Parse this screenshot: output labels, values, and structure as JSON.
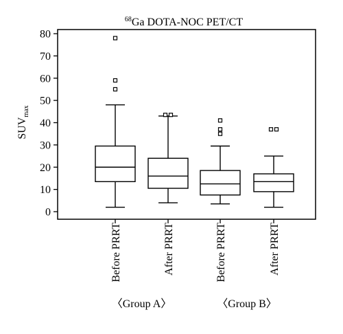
{
  "chart_data": {
    "type": "box",
    "title": {
      "superscript": "68",
      "text": "Ga DOTA-NOC PET/CT"
    },
    "ylabel": {
      "text": "SUV",
      "subscript": "max"
    },
    "ylim": [
      0,
      80
    ],
    "yticks": [
      0,
      10,
      20,
      30,
      40,
      50,
      60,
      70,
      80
    ],
    "grid": false,
    "categories": [
      "Before PRRT",
      "After PRRT",
      "Before PRRT",
      "After PRRT"
    ],
    "groups": [
      {
        "label": "〈Group A〉",
        "categories": [
          0,
          1
        ]
      },
      {
        "label": "〈Group B〉",
        "categories": [
          2,
          3
        ]
      }
    ],
    "boxes": [
      {
        "category": "Before PRRT",
        "group": "〈Group A〉",
        "min": 2,
        "q1": 13.5,
        "median": 20,
        "q3": 29.5,
        "max": 48,
        "outliers": [
          55,
          59,
          78
        ]
      },
      {
        "category": "After PRRT",
        "group": "〈Group A〉",
        "min": 4,
        "q1": 10.5,
        "median": 16,
        "q3": 24,
        "max": 43,
        "outliers": [
          43.5,
          43.5
        ]
      },
      {
        "category": "Before PRRT",
        "group": "〈Group B〉",
        "min": 3.5,
        "q1": 7.5,
        "median": 12.5,
        "q3": 18.5,
        "max": 29.5,
        "outliers": [
          35,
          37,
          41
        ]
      },
      {
        "category": "After PRRT",
        "group": "〈Group B〉",
        "min": 2,
        "q1": 9,
        "median": 13.5,
        "q3": 17,
        "max": 25,
        "outliers": [
          37,
          37
        ]
      }
    ]
  }
}
